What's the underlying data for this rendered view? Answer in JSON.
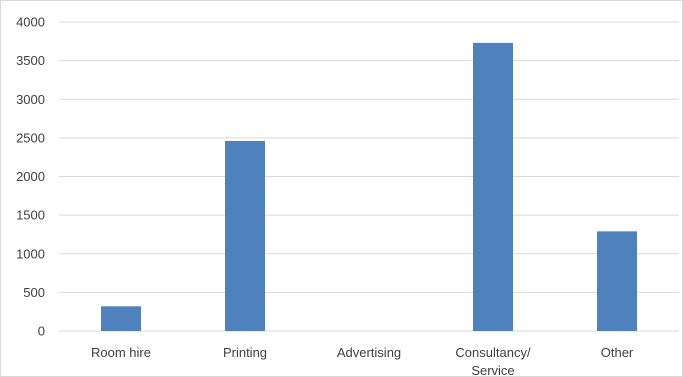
{
  "chart_data": {
    "type": "bar",
    "categories": [
      [
        "Room hire"
      ],
      [
        "Printing"
      ],
      [
        "Advertising"
      ],
      [
        "Consultancy/",
        "Service"
      ],
      [
        "Other"
      ]
    ],
    "values": [
      320,
      2460,
      0,
      3730,
      1290
    ],
    "yticks": [
      "0",
      "500",
      "1000",
      "1500",
      "2000",
      "2500",
      "3000",
      "3500",
      "4000"
    ],
    "ylim": [
      0,
      4000
    ],
    "grid": true,
    "bar_color": "#4f81bd"
  }
}
